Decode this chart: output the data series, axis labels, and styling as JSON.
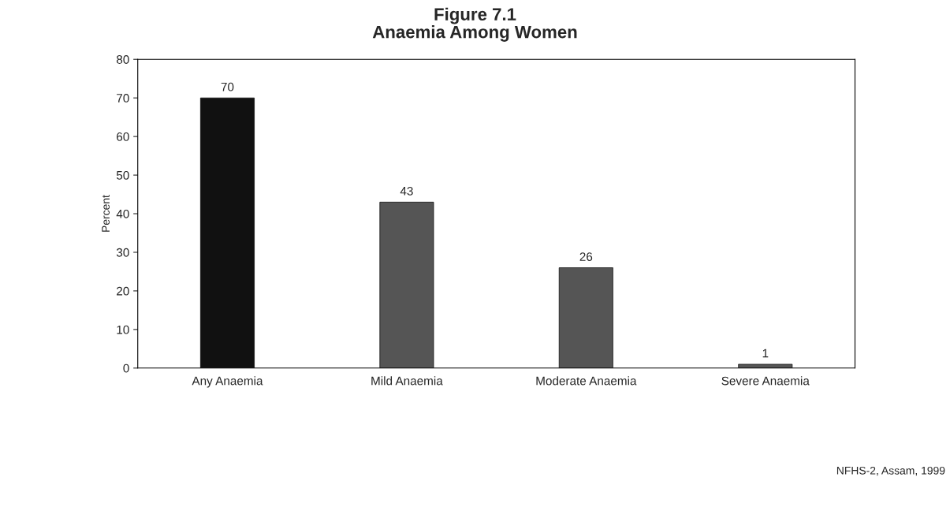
{
  "chart_data": {
    "type": "bar",
    "title": "Figure 7.1\nAnaemia Among Women",
    "ylabel": "Percent",
    "categories": [
      "Any Anaemia",
      "Mild Anaemia",
      "Moderate Anaemia",
      "Severe Anaemia"
    ],
    "values": [
      70,
      43,
      26,
      1
    ],
    "colors": [
      "#111111",
      "#555555",
      "#555555",
      "#555555"
    ],
    "ylim": [
      0,
      80
    ],
    "yticks": [
      0,
      10,
      20,
      30,
      40,
      50,
      60,
      70,
      80
    ],
    "data_labels": true,
    "grid": false,
    "legend": false,
    "annotations": [
      "NFHS-2, Assam, 1999"
    ]
  }
}
